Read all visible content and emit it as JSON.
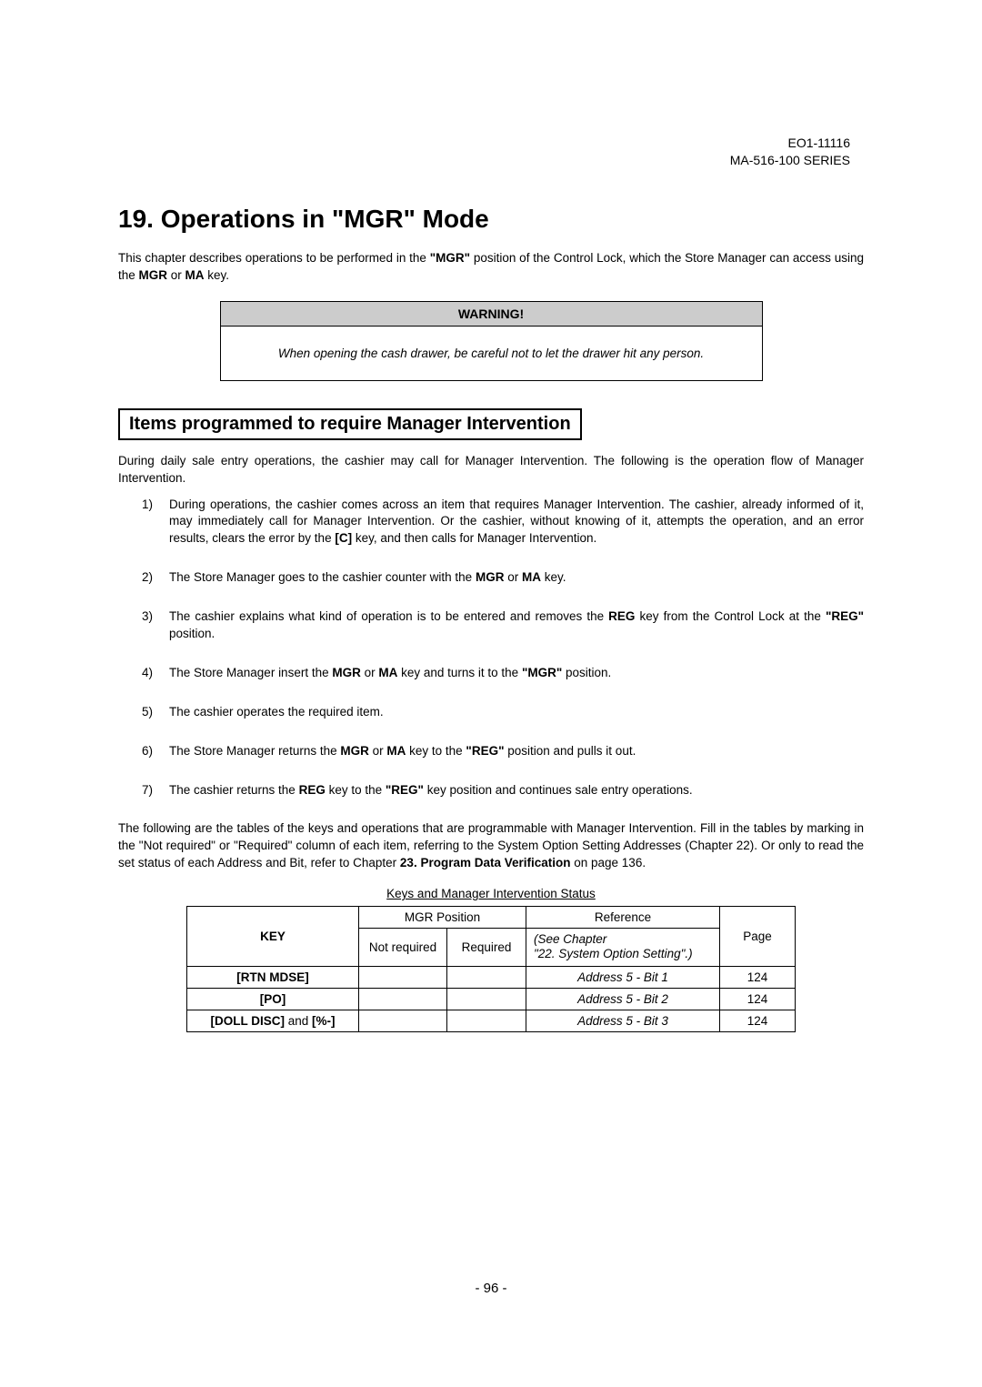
{
  "header": {
    "doc_id": "EO1-11116",
    "series": "MA-516-100 SERIES"
  },
  "chapter": {
    "number": "19.",
    "title": "Operations in \"MGR\" Mode"
  },
  "intro": {
    "part1": "This chapter describes operations to be performed in the ",
    "mgr_bold": "\"MGR\"",
    "part2": " position of the Control Lock, which the Store Manager can access using the ",
    "mgr_key": "MGR",
    "or": " or ",
    "ma_key": "MA",
    "part3": " key."
  },
  "warning": {
    "label": "WARNING!",
    "text": "When opening the cash drawer, be careful not to let the drawer hit any person."
  },
  "section": {
    "title": "Items programmed to require Manager Intervention",
    "lead": "During daily sale entry operations, the cashier may call for Manager Intervention. The following is the operation flow of Manager Intervention."
  },
  "steps": [
    {
      "n": "1)",
      "p1": "During operations, the cashier comes across an item that requires Manager Intervention. The cashier, already informed of it, may immediately call for Manager Intervention. Or the cashier, without knowing of it, attempts the operation, and an error results, clears the error by the ",
      "b1": "[C]",
      "p2": " key, and then calls for Manager Intervention."
    },
    {
      "n": "2)",
      "p1": "The Store Manager goes to the cashier counter with the ",
      "b1": "MGR",
      "or": " or ",
      "b2": "MA",
      "p2": " key."
    },
    {
      "n": "3)",
      "p1": "The cashier explains what kind of operation is to be entered and removes the ",
      "b1": "REG",
      "p2": " key from the Control Lock at the ",
      "b2": "\"REG\"",
      "p3": " position."
    },
    {
      "n": "4)",
      "p1": "The Store Manager insert the ",
      "b1": "MGR",
      "or": " or ",
      "b2": "MA",
      "p2": " key and turns it to the ",
      "b3": "\"MGR\"",
      "p3": " position."
    },
    {
      "n": "5)",
      "p1": "The cashier operates the required item."
    },
    {
      "n": "6)",
      "p1": "The Store Manager returns the ",
      "b1": "MGR",
      "or": " or ",
      "b2": "MA",
      "p2": " key to the ",
      "b3": "\"REG\"",
      "p3": " position and pulls it out."
    },
    {
      "n": "7)",
      "p1": "The cashier returns the ",
      "b1": "REG",
      "p2": " key to the ",
      "b2": "\"REG\"",
      "p3": " key position and continues sale entry operations."
    }
  ],
  "followup": {
    "p1": "The following are the tables of the keys and operations that are programmable with Manager Intervention. Fill in the tables by marking in the \"Not required\" or \"Required\" column of each item, referring to the System Option Setting Addresses (Chapter 22). Or only to read the set status of each Address and Bit, refer to Chapter ",
    "b1": "23. Program Data Verification",
    "p2": " on page 136."
  },
  "table": {
    "caption": "Keys and Manager Intervention Status",
    "headers": {
      "key": "KEY",
      "mgr_pos": "MGR Position",
      "not_required": "Not required",
      "required": "Required",
      "reference": "Reference",
      "ref_sub1": "(See Chapter",
      "ref_sub2": "\"22. System Option Setting\".)",
      "page": "Page"
    },
    "rows": [
      {
        "key": "[RTN MDSE]",
        "ref": "Address 5 - Bit 1",
        "page": "124"
      },
      {
        "key": "[PO]",
        "ref": "Address 5 - Bit 2",
        "page": "124"
      },
      {
        "key_pre": "[DOLL DISC]",
        "key_mid": " and ",
        "key_post": "[%-]",
        "ref": "Address 5 - Bit 3",
        "page": "124"
      }
    ]
  },
  "page_number": "- 96 -"
}
